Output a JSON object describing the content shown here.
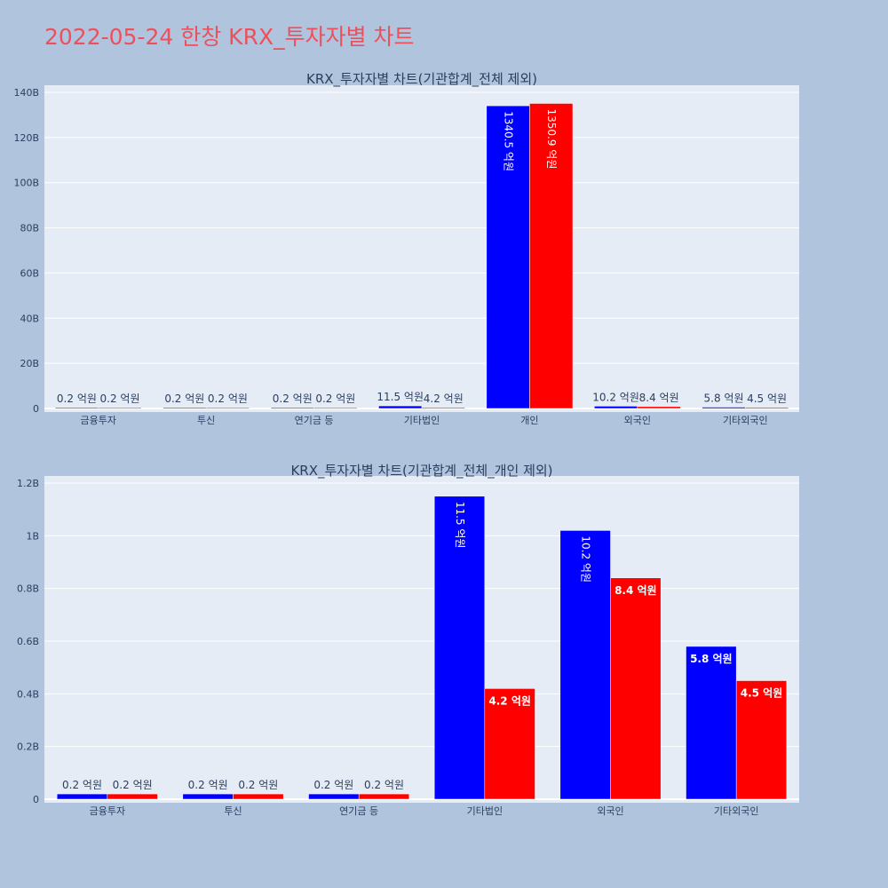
{
  "title": "2022-05-24 한창 KRX_투자자별 차트",
  "colors": {
    "page_bg": "#b0c4de",
    "plot_bg": "#e5ecf6",
    "grid": "#ffffff",
    "title": "#ef4f5b",
    "text": "#2a3f5f",
    "series_a": "#0000ff",
    "series_b": "#ff0000"
  },
  "chart_data": [
    {
      "type": "bar",
      "title": "KRX_투자자별 차트(기관합계_전체 제외)",
      "categories": [
        "금융투자",
        "투신",
        "연기금 등",
        "기타법인",
        "개인",
        "외국인",
        "기타외국인"
      ],
      "ylim": [
        0,
        140000000000
      ],
      "yticks": [
        0,
        20000000000,
        40000000000,
        60000000000,
        80000000000,
        100000000000,
        120000000000,
        140000000000
      ],
      "ytick_labels": [
        "0",
        "20B",
        "40B",
        "60B",
        "80B",
        "100B",
        "120B",
        "140B"
      ],
      "grid": true,
      "series": [
        {
          "color": "#0000ff",
          "values": [
            20000000,
            20000000,
            20000000,
            1150000000,
            134050000000,
            1020000000,
            580000000
          ],
          "labels": [
            "0.2 억원",
            "0.2 억원",
            "0.2 억원",
            "11.5 억원",
            "1340.5 억원",
            "10.2 억원",
            "5.8 억원"
          ]
        },
        {
          "color": "#ff0000",
          "values": [
            20000000,
            20000000,
            20000000,
            420000000,
            135090000000,
            840000000,
            450000000
          ],
          "labels": [
            "0.2 억원",
            "0.2 억원",
            "0.2 억원",
            "4.2 억원",
            "1350.9 억원",
            "8.4 억원",
            "4.5 억원"
          ]
        }
      ]
    },
    {
      "type": "bar",
      "title": "KRX_투자자별 차트(기관합계_전체_개인 제외)",
      "categories": [
        "금융투자",
        "투신",
        "연기금 등",
        "기타법인",
        "외국인",
        "기타외국인"
      ],
      "ylim": [
        0,
        1200000000
      ],
      "yticks": [
        0,
        200000000,
        400000000,
        600000000,
        800000000,
        1000000000,
        1200000000
      ],
      "ytick_labels": [
        "0",
        "0.2B",
        "0.4B",
        "0.6B",
        "0.8B",
        "1B",
        "1.2B"
      ],
      "grid": true,
      "series": [
        {
          "color": "#0000ff",
          "values": [
            20000000,
            20000000,
            20000000,
            1150000000,
            1020000000,
            580000000
          ],
          "labels": [
            "0.2 억원",
            "0.2 억원",
            "0.2 억원",
            "11.5 억원",
            "10.2 억원",
            "5.8 억원"
          ]
        },
        {
          "color": "#ff0000",
          "values": [
            20000000,
            20000000,
            20000000,
            420000000,
            840000000,
            450000000
          ],
          "labels": [
            "0.2 억원",
            "0.2 억원",
            "0.2 억원",
            "4.2 억원",
            "8.4 억원",
            "4.5 억원"
          ]
        }
      ]
    }
  ]
}
